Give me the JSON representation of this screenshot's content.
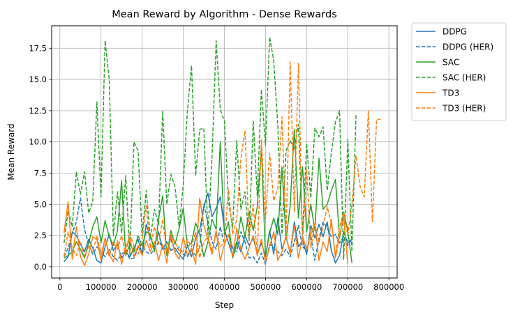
{
  "chart_data": {
    "type": "line",
    "title": "Mean Reward by Algorithm - Dense Rewards",
    "xlabel": "Step",
    "ylabel": "Mean Reward",
    "xlim": [
      -20000,
      820000
    ],
    "ylim": [
      -0.9,
      19.3
    ],
    "xticks": [
      0,
      100000,
      200000,
      300000,
      400000,
      500000,
      600000,
      700000,
      800000
    ],
    "xtick_labels": [
      "0",
      "100000",
      "200000",
      "300000",
      "400000",
      "500000",
      "600000",
      "700000",
      "800000"
    ],
    "yticks": [
      0.0,
      2.5,
      5.0,
      7.5,
      10.0,
      12.5,
      15.0,
      17.5
    ],
    "ytick_labels": [
      "0.0",
      "2.5",
      "5.0",
      "7.5",
      "10.0",
      "12.5",
      "15.0",
      "17.5"
    ],
    "grid": true,
    "legend_position": "outside-top-right",
    "series": [
      {
        "name": "DDPG",
        "color": "#1f77b4",
        "dash": "solid",
        "x": [
          10000,
          20000,
          30000,
          40000,
          50000,
          60000,
          70000,
          80000,
          90000,
          100000,
          110000,
          120000,
          130000,
          140000,
          150000,
          160000,
          170000,
          180000,
          190000,
          200000,
          210000,
          220000,
          230000,
          240000,
          250000,
          260000,
          270000,
          280000,
          290000,
          300000,
          310000,
          320000,
          330000,
          340000,
          350000,
          360000,
          370000,
          380000,
          390000,
          400000,
          410000,
          420000,
          430000,
          440000,
          450000,
          460000,
          470000,
          480000,
          490000,
          500000,
          510000,
          520000,
          530000,
          540000,
          550000,
          560000,
          570000,
          580000,
          590000,
          600000,
          610000,
          620000,
          630000,
          640000,
          650000,
          660000,
          670000,
          680000,
          690000,
          700000,
          710000
        ],
        "y": [
          0.4,
          0.8,
          2.8,
          2.5,
          1.8,
          1.2,
          2.2,
          1.5,
          0.5,
          0.3,
          1.6,
          2.6,
          1.3,
          1.8,
          0.7,
          1.2,
          0.8,
          1.5,
          2.2,
          1.0,
          3.4,
          2.3,
          1.6,
          2.8,
          1.4,
          2.0,
          1.3,
          1.5,
          1.0,
          0.6,
          1.7,
          0.8,
          2.3,
          2.9,
          4.8,
          5.9,
          4.0,
          4.7,
          5.6,
          3.0,
          1.9,
          0.9,
          2.0,
          1.2,
          2.5,
          1.7,
          2.3,
          1.0,
          1.9,
          0.8,
          2.9,
          1.0,
          3.9,
          1.4,
          2.4,
          1.1,
          3.6,
          1.6,
          2.1,
          1.0,
          3.3,
          2.3,
          3.4,
          2.4,
          3.6,
          1.3,
          0.3,
          0.9,
          2.8,
          1.9,
          2.2
        ]
      },
      {
        "name": "DDPG (HER)",
        "color": "#1f77b4",
        "dash": "dashed",
        "x": [
          10000,
          20000,
          30000,
          40000,
          50000,
          60000,
          70000,
          80000,
          90000,
          100000,
          110000,
          120000,
          130000,
          140000,
          150000,
          160000,
          170000,
          180000,
          190000,
          200000,
          210000,
          220000,
          230000,
          240000,
          250000,
          260000,
          270000,
          280000,
          290000,
          300000,
          310000,
          320000,
          330000,
          340000,
          350000,
          360000,
          370000,
          380000,
          390000,
          400000,
          410000,
          420000,
          430000,
          440000,
          450000,
          460000,
          470000,
          480000,
          490000,
          500000,
          510000,
          520000,
          530000,
          540000,
          550000,
          560000,
          570000,
          580000,
          590000,
          600000,
          610000,
          620000,
          630000,
          640000,
          650000,
          660000,
          670000,
          680000,
          690000,
          700000,
          710000
        ],
        "y": [
          0.8,
          1.5,
          2.7,
          3.6,
          5.5,
          3.0,
          1.8,
          1.0,
          1.6,
          1.2,
          0.8,
          1.4,
          0.8,
          0.5,
          1.0,
          1.3,
          0.6,
          0.7,
          1.5,
          1.8,
          1.2,
          1.0,
          1.4,
          2.0,
          1.6,
          1.3,
          2.2,
          1.2,
          1.6,
          1.0,
          0.8,
          1.3,
          0.9,
          1.5,
          5.0,
          3.5,
          2.0,
          1.4,
          3.2,
          1.8,
          2.6,
          1.5,
          1.2,
          2.8,
          2.0,
          0.7,
          0.8,
          0.3,
          1.1,
          0.2,
          1.8,
          1.5,
          1.2,
          0.9,
          1.4,
          0.8,
          2.0,
          3.3,
          1.6,
          1.3,
          2.5,
          0.5,
          2.2,
          3.6,
          3.1,
          2.4,
          2.6,
          1.9,
          2.4,
          1.7,
          2.2
        ]
      },
      {
        "name": "SAC",
        "color": "#2ca02c",
        "dash": "solid",
        "x": [
          10000,
          20000,
          30000,
          40000,
          50000,
          60000,
          70000,
          80000,
          90000,
          100000,
          110000,
          120000,
          130000,
          140000,
          150000,
          160000,
          170000,
          180000,
          190000,
          200000,
          210000,
          220000,
          230000,
          240000,
          250000,
          260000,
          270000,
          280000,
          290000,
          300000,
          310000,
          320000,
          330000,
          340000,
          350000,
          360000,
          370000,
          380000,
          390000,
          400000,
          410000,
          420000,
          430000,
          440000,
          450000,
          460000,
          470000,
          480000,
          490000,
          500000,
          510000,
          520000,
          530000,
          540000,
          550000,
          560000,
          570000,
          580000,
          590000,
          600000,
          610000,
          620000,
          630000,
          640000,
          650000,
          660000,
          670000,
          680000,
          690000,
          700000,
          710000
        ],
        "y": [
          0.7,
          0.9,
          1.2,
          2.0,
          1.4,
          0.7,
          1.9,
          3.2,
          4.0,
          1.9,
          3.7,
          2.4,
          1.7,
          2.9,
          6.9,
          0.9,
          1.8,
          1.2,
          2.5,
          1.7,
          2.8,
          2.6,
          1.2,
          3.8,
          5.7,
          0.9,
          2.9,
          1.8,
          3.1,
          4.7,
          1.6,
          1.9,
          3.5,
          2.6,
          0.8,
          2.0,
          3.8,
          3.0,
          10.0,
          2.6,
          3.6,
          0.7,
          1.8,
          4.0,
          2.4,
          4.4,
          2.9,
          4.8,
          9.5,
          0.8,
          2.7,
          3.9,
          2.6,
          8.0,
          2.2,
          4.9,
          11.0,
          3.9,
          8.0,
          2.8,
          5.0,
          2.9,
          8.7,
          4.6,
          5.0,
          6.1,
          7.0,
          2.3,
          4.4,
          2.9,
          0.3
        ]
      },
      {
        "name": "SAC (HER)",
        "color": "#2ca02c",
        "dash": "dashed",
        "x": [
          10000,
          20000,
          30000,
          40000,
          50000,
          60000,
          70000,
          80000,
          90000,
          100000,
          110000,
          120000,
          130000,
          140000,
          150000,
          160000,
          170000,
          180000,
          190000,
          200000,
          210000,
          220000,
          230000,
          240000,
          250000,
          260000,
          270000,
          280000,
          290000,
          300000,
          310000,
          320000,
          330000,
          340000,
          350000,
          360000,
          370000,
          380000,
          390000,
          400000,
          410000,
          420000,
          430000,
          440000,
          450000,
          460000,
          470000,
          480000,
          490000,
          500000,
          510000,
          520000,
          530000,
          540000,
          550000,
          560000,
          570000,
          580000,
          590000,
          600000,
          610000,
          620000,
          630000,
          640000,
          650000,
          660000,
          670000,
          680000,
          690000,
          700000,
          710000,
          720000
        ],
        "y": [
          1.9,
          4.5,
          3.2,
          7.6,
          5.8,
          7.6,
          4.3,
          5.2,
          13.2,
          5.6,
          18.1,
          15.0,
          2.5,
          6.0,
          2.7,
          7.3,
          1.0,
          10.0,
          9.3,
          2.5,
          6.1,
          2.3,
          4.6,
          3.4,
          12.5,
          5.0,
          7.4,
          6.4,
          3.1,
          6.6,
          12.5,
          16.1,
          7.3,
          11.0,
          11.1,
          2.6,
          8.8,
          18.1,
          12.6,
          11.7,
          5.2,
          3.1,
          10.1,
          4.6,
          6.0,
          2.1,
          11.7,
          5.7,
          14.2,
          9.7,
          18.4,
          16.5,
          11.2,
          2.6,
          9.3,
          10.1,
          9.4,
          11.4,
          2.6,
          9.9,
          5.5,
          11.1,
          10.4,
          11.2,
          6.1,
          9.1,
          11.6,
          12.5,
          0.6,
          10.2,
          1.2,
          12.2
        ]
      },
      {
        "name": "TD3",
        "color": "#ff7f0e",
        "dash": "solid",
        "x": [
          10000,
          20000,
          30000,
          40000,
          50000,
          60000,
          70000,
          80000,
          90000,
          100000,
          110000,
          120000,
          130000,
          140000,
          150000,
          160000,
          170000,
          180000,
          190000,
          200000,
          210000,
          220000,
          230000,
          240000,
          250000,
          260000,
          270000,
          280000,
          290000,
          300000,
          310000,
          320000,
          330000,
          340000,
          350000,
          360000,
          370000,
          380000,
          390000,
          400000,
          410000,
          420000,
          430000,
          440000,
          450000,
          460000,
          470000,
          480000,
          490000,
          500000,
          510000,
          520000,
          530000,
          540000,
          550000,
          560000,
          570000,
          580000,
          590000,
          600000,
          610000,
          620000,
          630000,
          640000,
          650000,
          660000,
          670000,
          680000,
          690000,
          700000
        ],
        "y": [
          2.7,
          5.2,
          0.6,
          3.2,
          0.8,
          0.1,
          1.0,
          2.4,
          2.2,
          0.5,
          2.3,
          1.0,
          0.4,
          2.1,
          0.2,
          1.6,
          2.3,
          0.8,
          1.7,
          0.9,
          2.1,
          1.2,
          2.0,
          0.5,
          1.8,
          0.3,
          2.6,
          1.1,
          0.6,
          2.4,
          0.9,
          1.5,
          0.2,
          5.5,
          3.3,
          2.2,
          1.0,
          2.9,
          0.5,
          1.8,
          2.6,
          0.8,
          3.1,
          1.4,
          0.6,
          1.5,
          2.5,
          0.9,
          2.2,
          0.4,
          1.6,
          2.8,
          0.5,
          1.2,
          2.5,
          1.0,
          3.3,
          0.7,
          2.4,
          1.4,
          2.6,
          3.5,
          0.5,
          2.0,
          1.2,
          3.8,
          0.7,
          2.5,
          4.0,
          0.2
        ]
      },
      {
        "name": "TD3 (HER)",
        "color": "#ff7f0e",
        "dash": "dashed",
        "x": [
          10000,
          20000,
          30000,
          40000,
          50000,
          60000,
          70000,
          80000,
          90000,
          100000,
          110000,
          120000,
          130000,
          140000,
          150000,
          160000,
          170000,
          180000,
          190000,
          200000,
          210000,
          220000,
          230000,
          240000,
          250000,
          260000,
          270000,
          280000,
          290000,
          300000,
          310000,
          320000,
          330000,
          340000,
          350000,
          360000,
          370000,
          380000,
          390000,
          400000,
          410000,
          420000,
          430000,
          440000,
          450000,
          460000,
          470000,
          480000,
          490000,
          500000,
          510000,
          520000,
          530000,
          540000,
          550000,
          560000,
          570000,
          580000,
          590000,
          600000,
          610000,
          620000,
          630000,
          640000,
          650000,
          660000,
          670000,
          680000,
          690000,
          700000,
          710000,
          720000,
          730000,
          740000,
          750000,
          760000,
          770000,
          780000
        ],
        "y": [
          0.8,
          2.8,
          1.5,
          0.9,
          2.0,
          0.8,
          1.6,
          1.2,
          2.5,
          1.0,
          2.3,
          0.8,
          2.0,
          1.4,
          2.5,
          0.9,
          2.8,
          1.6,
          1.0,
          2.2,
          4.9,
          1.5,
          3.2,
          1.8,
          3.8,
          1.2,
          2.4,
          2.0,
          1.3,
          1.2,
          2.2,
          1.6,
          2.8,
          0.7,
          2.0,
          2.4,
          1.3,
          2.6,
          1.6,
          2.0,
          6.2,
          2.6,
          3.8,
          8.7,
          10.9,
          2.4,
          5.0,
          0.9,
          10.2,
          3.8,
          9.1,
          5.3,
          6.3,
          12.0,
          2.7,
          16.4,
          4.4,
          16.3,
          1.9,
          7.8,
          1.5,
          3.4,
          1.9,
          3.2,
          4.8,
          3.5,
          0.9,
          3.2,
          4.4,
          2.5,
          5.0,
          8.9,
          6.4,
          5.6,
          12.5,
          3.6,
          11.8,
          11.8
        ]
      }
    ]
  }
}
